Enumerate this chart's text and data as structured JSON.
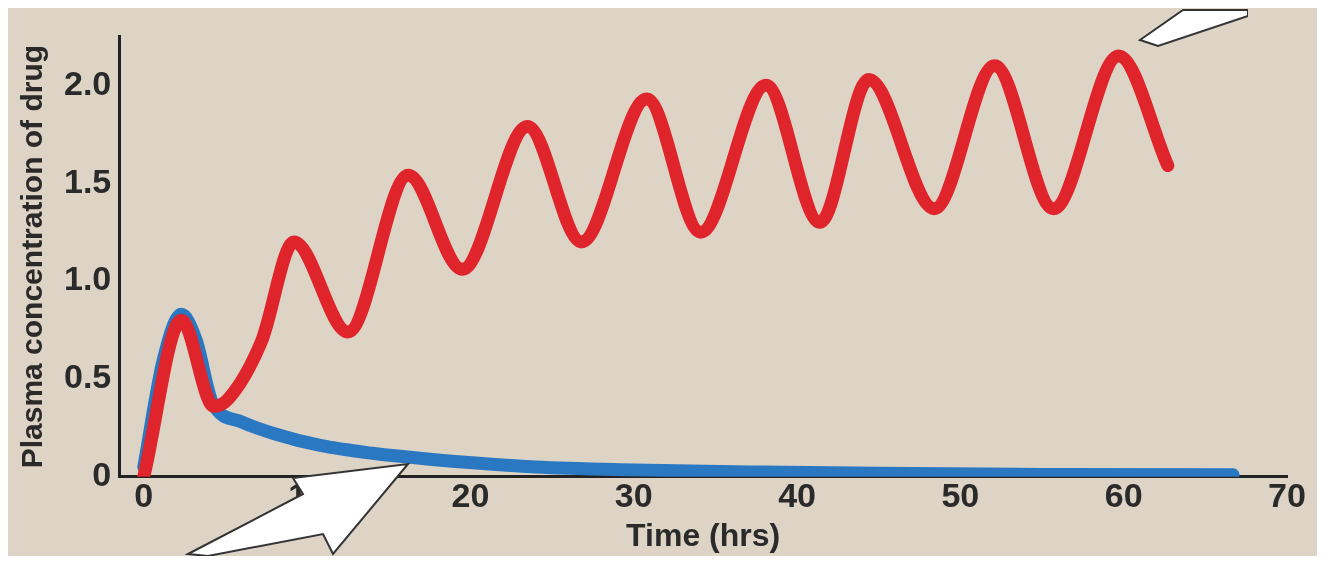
{
  "chart_data": {
    "type": "line",
    "xlabel": "Time (hrs)",
    "ylabel": "Plasma concentration of drug",
    "xlim": [
      -1.5,
      70
    ],
    "ylim": [
      0,
      2.25
    ],
    "xticks": [
      0,
      10,
      20,
      30,
      40,
      50,
      60,
      70
    ],
    "yticks": [
      0,
      0.5,
      {
        "value": 1,
        "label": "1.0"
      },
      1.5,
      {
        "value": 2,
        "label": "2.0"
      }
    ],
    "grid": false,
    "legend": false,
    "marker": "none",
    "line_style": "solid",
    "series": [
      {
        "color": "#e0242b",
        "x": [
          0,
          2.3,
          4.3,
          5.2,
          7.2,
          9.2,
          12.5,
          16.2,
          19.5,
          23.5,
          26.8,
          30.8,
          34.1,
          38.1,
          41.4,
          44.4,
          48.4,
          52.1,
          55.7,
          59.7,
          62.7
        ],
        "values": [
          0,
          0.8,
          0.36,
          0.4,
          0.69,
          1.2,
          0.74,
          1.54,
          1.06,
          1.79,
          1.2,
          1.93,
          1.25,
          2.0,
          1.3,
          2.03,
          1.37,
          2.1,
          1.37,
          2.15,
          1.59
        ]
      },
      {
        "color": "#2a78c2",
        "x": [
          0,
          1.2,
          2.3,
          3.2,
          4.2,
          6,
          8,
          10.8,
          14,
          17.5,
          24,
          30,
          37,
          45,
          55,
          66.7
        ],
        "values": [
          0.05,
          0.6,
          0.83,
          0.7,
          0.38,
          0.28,
          0.22,
          0.16,
          0.12,
          0.09,
          0.05,
          0.035,
          0.025,
          0.018,
          0.012,
          0.01
        ]
      }
    ]
  }
}
